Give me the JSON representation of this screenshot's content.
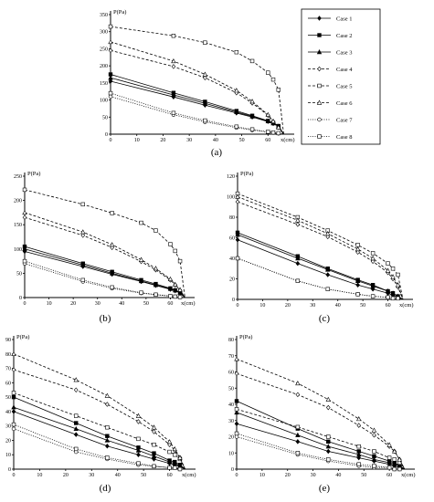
{
  "figure": {
    "legend": {
      "prefix": "Case",
      "entries": [
        "1",
        "2",
        "3",
        "4",
        "5",
        "6",
        "7",
        "8"
      ]
    }
  },
  "styles": [
    {
      "dash": "",
      "marker": "diamond",
      "fill": "#000"
    },
    {
      "dash": "",
      "marker": "square",
      "fill": "#000"
    },
    {
      "dash": "",
      "marker": "triangle",
      "fill": "#000"
    },
    {
      "dash": "3,2",
      "marker": "diamond",
      "fill": "#fff"
    },
    {
      "dash": "3,2",
      "marker": "square",
      "fill": "#fff"
    },
    {
      "dash": "3,2",
      "marker": "triangle",
      "fill": "#fff"
    },
    {
      "dash": "1,1.5",
      "marker": "circle",
      "fill": "#fff"
    },
    {
      "dash": "1,1.5",
      "marker": "square",
      "fill": "#fff"
    }
  ],
  "chart_data": [
    {
      "type": "line",
      "panel_label": "(a)",
      "ylabel": "P(Pa)",
      "xlabel": "x(cm)",
      "xlim": [
        0,
        70
      ],
      "ylim": [
        0,
        350
      ],
      "xticks": [
        0,
        10,
        20,
        30,
        40,
        50,
        60
      ],
      "yticks": [
        0,
        50,
        100,
        150,
        200,
        250,
        300,
        350
      ],
      "series": [
        {
          "x": [
            0,
            24,
            36,
            48,
            54,
            60,
            62,
            64,
            66
          ],
          "values": [
            155,
            109,
            85,
            62,
            50,
            37,
            31,
            23,
            0
          ]
        },
        {
          "x": [
            0,
            24,
            36,
            48,
            54,
            60,
            62,
            64,
            66
          ],
          "values": [
            175,
            121,
            95,
            68,
            54,
            39,
            33,
            24,
            0
          ]
        },
        {
          "x": [
            0,
            24,
            36,
            48,
            54,
            60,
            62,
            64,
            66
          ],
          "values": [
            165,
            115,
            90,
            65,
            52,
            38,
            32,
            23,
            0
          ]
        },
        {
          "x": [
            0,
            24,
            36,
            48,
            54,
            60,
            62,
            64,
            66
          ],
          "values": [
            245,
            198,
            165,
            121,
            91,
            55,
            37,
            20,
            0
          ]
        },
        {
          "x": [
            0,
            24,
            36,
            48,
            54,
            60,
            62,
            64,
            66
          ],
          "values": [
            315,
            288,
            268,
            240,
            214,
            180,
            160,
            130,
            0
          ]
        },
        {
          "x": [
            0,
            24,
            36,
            48,
            54,
            60,
            62,
            64,
            66
          ],
          "values": [
            270,
            214,
            175,
            128,
            96,
            57,
            38,
            20,
            0
          ]
        },
        {
          "x": [
            0,
            24,
            36,
            48,
            54,
            60,
            62,
            64,
            66
          ],
          "values": [
            110,
            57,
            36,
            19,
            12,
            6,
            4,
            2,
            0
          ]
        },
        {
          "x": [
            0,
            24,
            36,
            48,
            54,
            60,
            62,
            64,
            66
          ],
          "values": [
            120,
            62,
            40,
            22,
            14,
            7,
            5,
            3,
            0
          ]
        }
      ]
    },
    {
      "type": "line",
      "panel_label": "(b)",
      "ylabel": "P(Pa)",
      "xlabel": "x(cm)",
      "xlim": [
        0,
        70
      ],
      "ylim": [
        0,
        250
      ],
      "xticks": [
        0,
        10,
        20,
        30,
        40,
        50,
        60
      ],
      "yticks": [
        0,
        50,
        100,
        150,
        200,
        250
      ],
      "series": [
        {
          "x": [
            0,
            24,
            36,
            48,
            54,
            60,
            62,
            64,
            66
          ],
          "values": [
            95,
            64,
            48,
            33,
            25,
            17,
            14,
            10,
            0
          ]
        },
        {
          "x": [
            0,
            24,
            36,
            48,
            54,
            60,
            62,
            64,
            66
          ],
          "values": [
            105,
            70,
            53,
            36,
            28,
            19,
            15,
            11,
            0
          ]
        },
        {
          "x": [
            0,
            24,
            36,
            48,
            54,
            60,
            62,
            64,
            66
          ],
          "values": [
            100,
            67,
            50,
            34,
            26,
            18,
            15,
            10,
            0
          ]
        },
        {
          "x": [
            0,
            24,
            36,
            48,
            54,
            60,
            62,
            64,
            66
          ],
          "values": [
            165,
            128,
            103,
            74,
            57,
            36,
            26,
            15,
            0
          ]
        },
        {
          "x": [
            0,
            24,
            36,
            48,
            54,
            60,
            62,
            64,
            66
          ],
          "values": [
            222,
            192,
            174,
            154,
            138,
            110,
            96,
            75,
            0
          ]
        },
        {
          "x": [
            0,
            24,
            36,
            48,
            54,
            60,
            62,
            64,
            66
          ],
          "values": [
            175,
            135,
            109,
            78,
            60,
            38,
            27,
            16,
            0
          ]
        },
        {
          "x": [
            0,
            24,
            36,
            48,
            54,
            60,
            62,
            64,
            66
          ],
          "values": [
            70,
            33,
            19,
            9,
            6,
            3,
            2,
            1,
            0
          ]
        },
        {
          "x": [
            0,
            24,
            36,
            48,
            54,
            60,
            62,
            64,
            66
          ],
          "values": [
            75,
            36,
            21,
            10,
            6,
            3,
            2,
            1,
            0
          ]
        }
      ]
    },
    {
      "type": "line",
      "panel_label": "(c)",
      "ylabel": "P(Pa)",
      "xlabel": "x(cm)",
      "xlim": [
        0,
        70
      ],
      "ylim": [
        0,
        120
      ],
      "xticks": [
        0,
        10,
        20,
        30,
        40,
        50,
        60
      ],
      "yticks": [
        0,
        20,
        40,
        60,
        80,
        100,
        120
      ],
      "series": [
        {
          "x": [
            0,
            24,
            36,
            48,
            54,
            60,
            62,
            64,
            66
          ],
          "values": [
            58,
            35,
            24,
            14,
            10,
            6,
            4,
            2,
            0
          ]
        },
        {
          "x": [
            0,
            24,
            36,
            48,
            54,
            60,
            62,
            64,
            66
          ],
          "values": [
            65,
            42,
            30,
            19,
            14,
            8,
            6,
            3,
            0
          ]
        },
        {
          "x": [
            0,
            24,
            36,
            48,
            54,
            60,
            62,
            64,
            66
          ],
          "values": [
            63,
            40,
            29,
            18,
            13,
            8,
            6,
            3,
            0
          ]
        },
        {
          "x": [
            0,
            24,
            36,
            48,
            54,
            60,
            62,
            64,
            66
          ],
          "values": [
            95,
            73,
            61,
            46,
            37,
            26,
            20,
            12,
            0
          ]
        },
        {
          "x": [
            0,
            24,
            36,
            48,
            54,
            60,
            62,
            64,
            66
          ],
          "values": [
            103,
            80,
            67,
            53,
            45,
            35,
            30,
            24,
            0
          ]
        },
        {
          "x": [
            0,
            24,
            36,
            48,
            54,
            60,
            62,
            64,
            66
          ],
          "values": [
            100,
            77,
            64,
            49,
            40,
            28,
            22,
            14,
            0
          ]
        },
        {
          "x": [
            0,
            24,
            36,
            48,
            54,
            60,
            62,
            64,
            66
          ],
          "values": [
            40,
            18,
            10,
            5,
            3,
            2,
            1,
            1,
            0
          ]
        },
        {
          "x": [
            0,
            24,
            36,
            48,
            54,
            60,
            62,
            64,
            66
          ],
          "values": [
            40,
            18,
            10,
            5,
            3,
            2,
            1,
            1,
            0
          ]
        }
      ]
    },
    {
      "type": "line",
      "panel_label": "(d)",
      "ylabel": "P(Pa)",
      "xlabel": "x(cm)",
      "xlim": [
        0,
        70
      ],
      "ylim": [
        0,
        90
      ],
      "xticks": [
        0,
        10,
        20,
        30,
        40,
        50,
        60
      ],
      "yticks": [
        0,
        10,
        20,
        30,
        40,
        50,
        60,
        70,
        80,
        90
      ],
      "series": [
        {
          "x": [
            0,
            24,
            36,
            48,
            54,
            60,
            62,
            64,
            66
          ],
          "values": [
            40,
            24,
            16,
            10,
            7,
            4,
            3,
            2,
            0
          ]
        },
        {
          "x": [
            0,
            24,
            36,
            48,
            54,
            60,
            62,
            64,
            66
          ],
          "values": [
            50,
            32,
            23,
            15,
            11,
            6,
            5,
            3,
            0
          ]
        },
        {
          "x": [
            0,
            24,
            36,
            48,
            54,
            60,
            62,
            64,
            66
          ],
          "values": [
            43,
            28,
            20,
            13,
            9,
            5,
            4,
            2,
            0
          ]
        },
        {
          "x": [
            0,
            24,
            36,
            48,
            54,
            60,
            62,
            64,
            66
          ],
          "values": [
            69,
            55,
            45,
            33,
            26,
            17,
            13,
            8,
            0
          ]
        },
        {
          "x": [
            0,
            24,
            36,
            48,
            54,
            60,
            62,
            64,
            66
          ],
          "values": [
            53,
            37,
            29,
            21,
            17,
            12,
            10,
            7,
            0
          ]
        },
        {
          "x": [
            0,
            24,
            36,
            48,
            54,
            60,
            62,
            64,
            66
          ],
          "values": [
            80,
            62,
            51,
            37,
            29,
            19,
            14,
            8,
            0
          ]
        },
        {
          "x": [
            0,
            24,
            36,
            48,
            54,
            60,
            62,
            64,
            66
          ],
          "values": [
            28,
            12,
            7,
            3,
            2,
            1,
            1,
            0,
            0
          ]
        },
        {
          "x": [
            0,
            24,
            36,
            48,
            54,
            60,
            62,
            64,
            66
          ],
          "values": [
            31,
            14,
            8,
            4,
            2,
            1,
            1,
            0,
            0
          ]
        }
      ]
    },
    {
      "type": "line",
      "panel_label": "(e)",
      "ylabel": "P(Pa)",
      "xlabel": "x(cm)",
      "xlim": [
        0,
        70
      ],
      "ylim": [
        0,
        80
      ],
      "xticks": [
        0,
        10,
        20,
        30,
        40,
        50,
        60
      ],
      "yticks": [
        0,
        10,
        20,
        30,
        40,
        50,
        60,
        70,
        80
      ],
      "series": [
        {
          "x": [
            0,
            24,
            36,
            48,
            54,
            60,
            62,
            64,
            66
          ],
          "values": [
            28,
            17,
            11,
            7,
            5,
            3,
            2,
            1,
            0
          ]
        },
        {
          "x": [
            0,
            24,
            36,
            48,
            54,
            60,
            62,
            64,
            66
          ],
          "values": [
            42,
            25,
            17,
            11,
            8,
            5,
            4,
            2,
            0
          ]
        },
        {
          "x": [
            0,
            24,
            36,
            48,
            54,
            60,
            62,
            64,
            66
          ],
          "values": [
            35,
            21,
            14,
            9,
            6,
            4,
            3,
            2,
            0
          ]
        },
        {
          "x": [
            0,
            24,
            36,
            48,
            54,
            60,
            62,
            64,
            66
          ],
          "values": [
            59,
            46,
            38,
            27,
            21,
            14,
            11,
            6,
            0
          ]
        },
        {
          "x": [
            0,
            24,
            36,
            48,
            54,
            60,
            62,
            64,
            66
          ],
          "values": [
            37,
            26,
            20,
            14,
            11,
            7,
            6,
            4,
            0
          ]
        },
        {
          "x": [
            0,
            24,
            36,
            48,
            54,
            60,
            62,
            64,
            66
          ],
          "values": [
            68,
            53,
            43,
            31,
            24,
            15,
            11,
            6,
            0
          ]
        },
        {
          "x": [
            0,
            24,
            36,
            48,
            54,
            60,
            62,
            64,
            66
          ],
          "values": [
            20,
            9,
            5,
            2,
            1,
            1,
            0,
            0,
            0
          ]
        },
        {
          "x": [
            0,
            24,
            36,
            48,
            54,
            60,
            62,
            64,
            66
          ],
          "values": [
            22,
            10,
            6,
            3,
            2,
            1,
            0,
            0,
            0
          ]
        }
      ]
    }
  ]
}
